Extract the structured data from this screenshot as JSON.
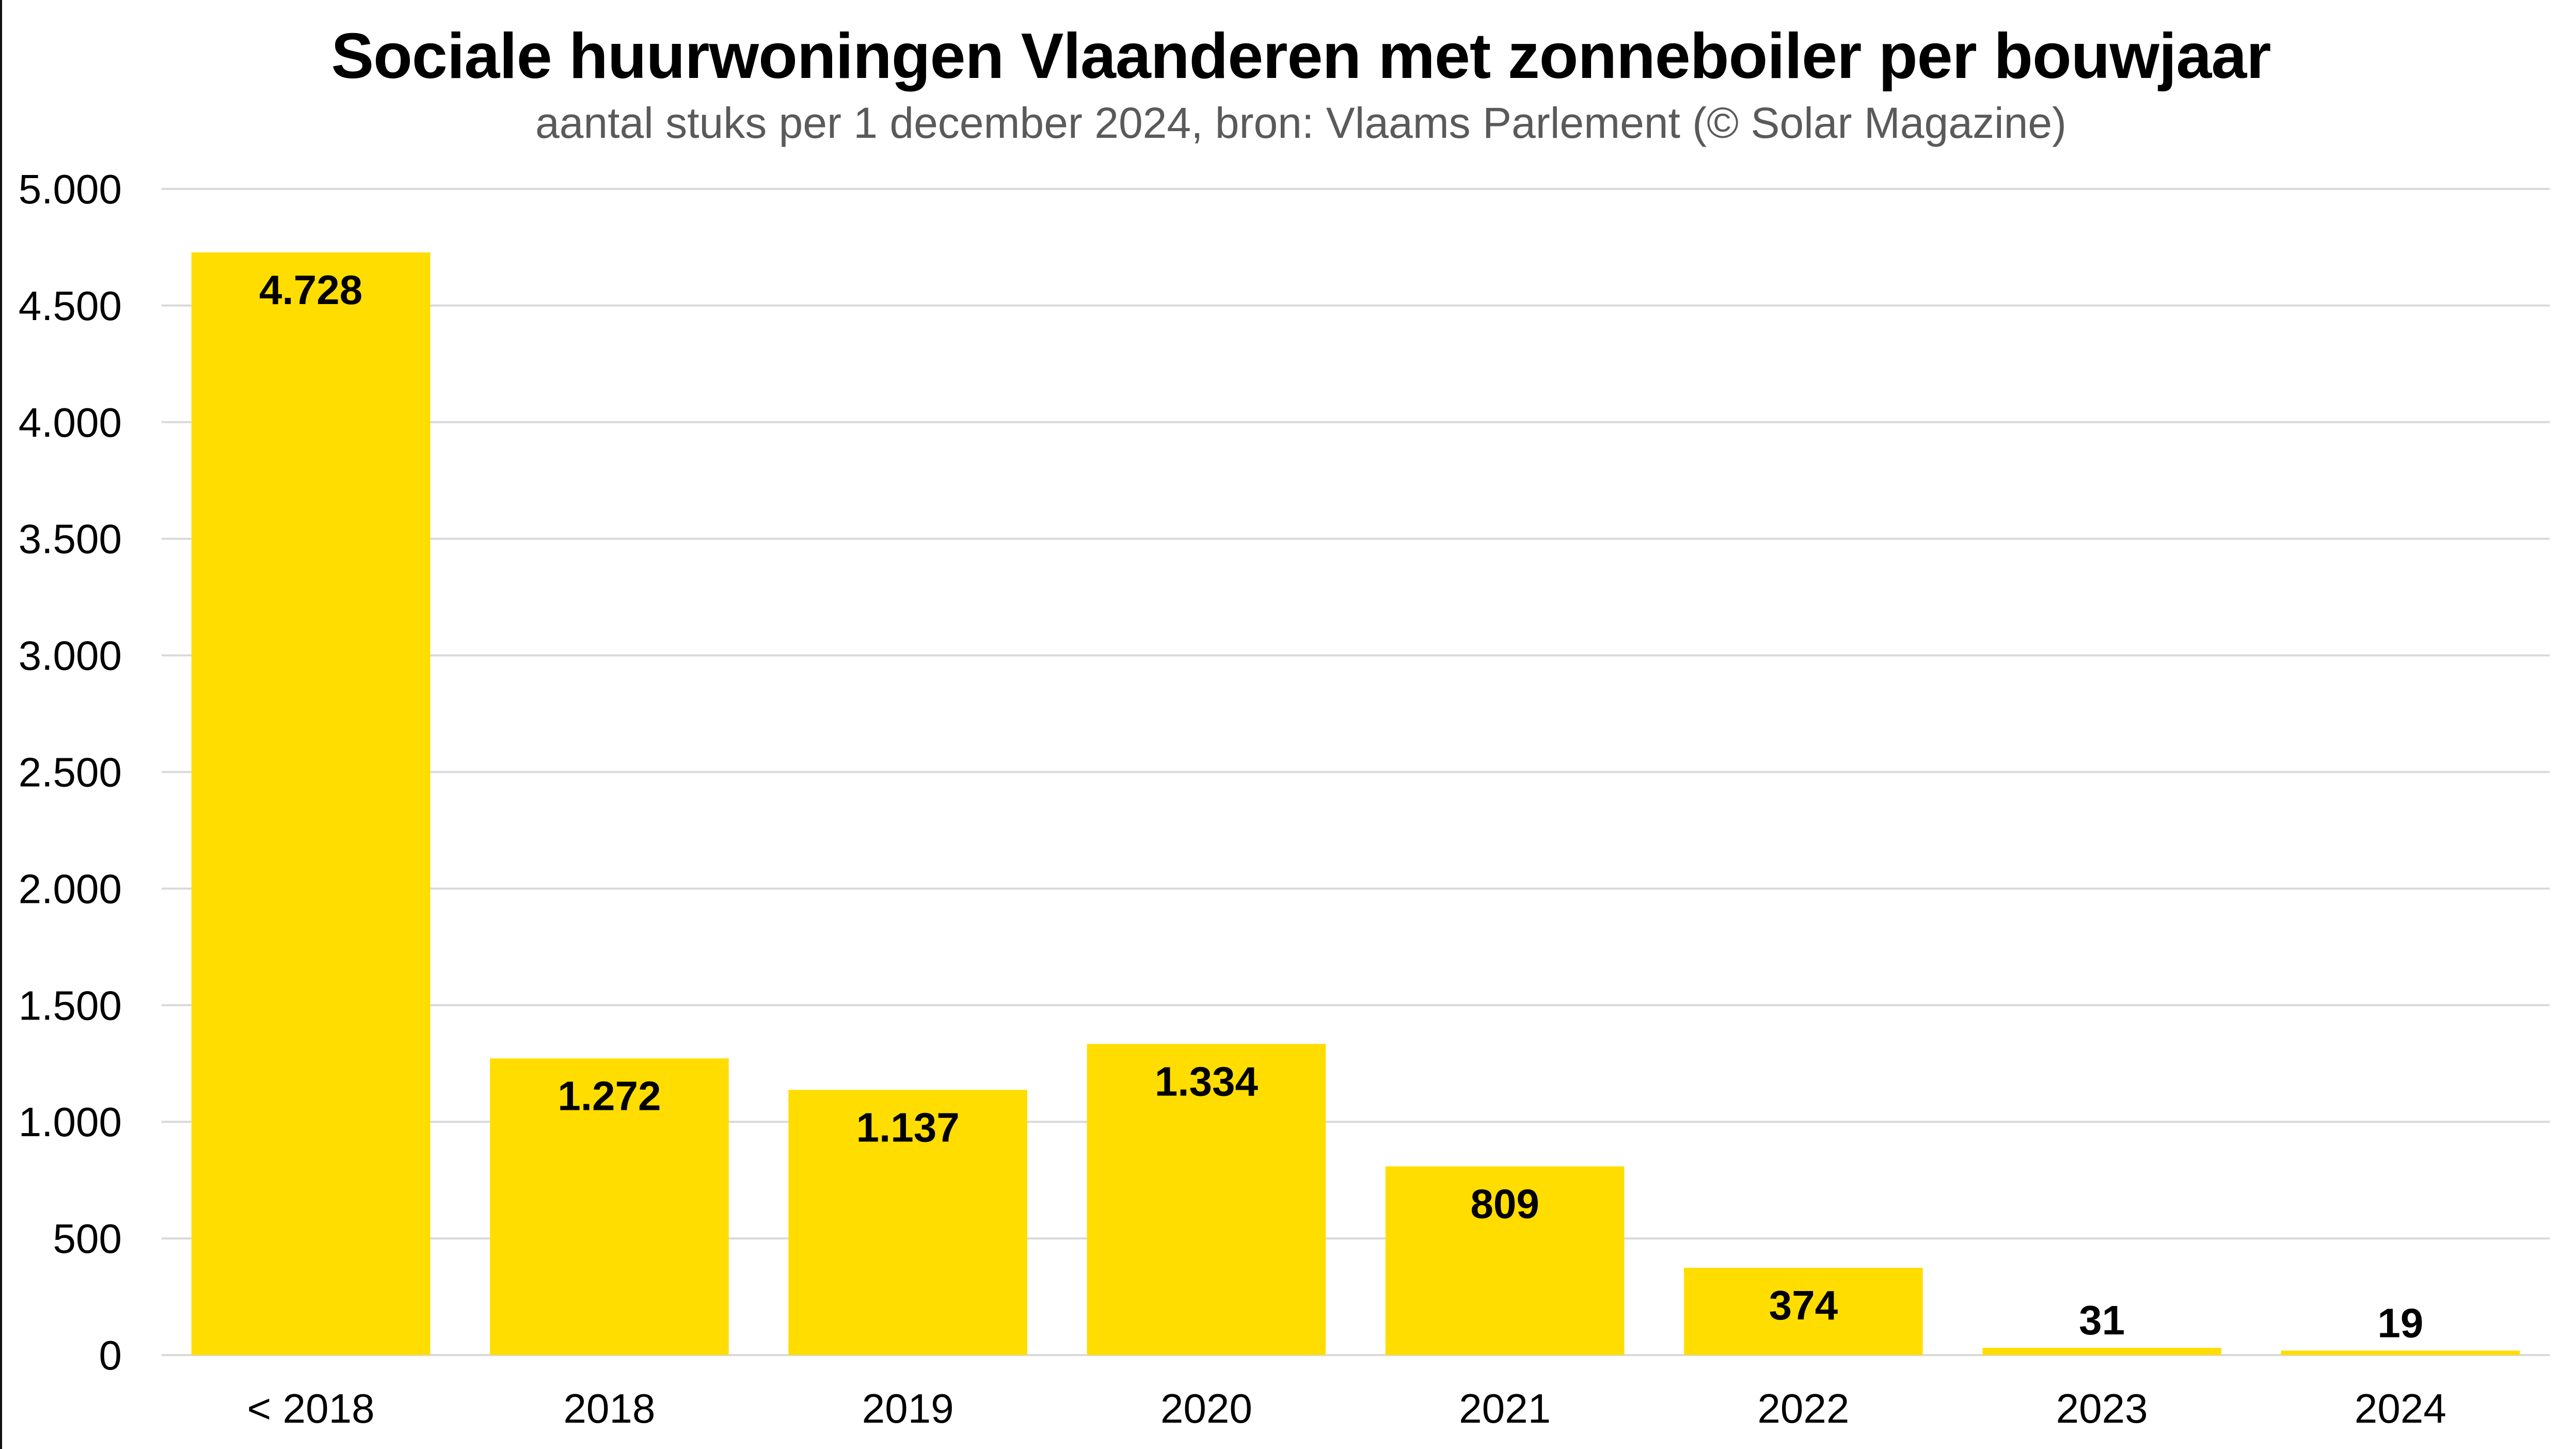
{
  "chart_data": {
    "type": "bar",
    "title": "Sociale huurwoningen Vlaanderen met zonneboiler per bouwjaar",
    "subtitle": "aantal stuks per 1 december 2024, bron: Vlaams Parlement (© Solar Magazine)",
    "xlabel": "",
    "ylabel": "",
    "categories": [
      "< 2018",
      "2018",
      "2019",
      "2020",
      "2021",
      "2022",
      "2023",
      "2024"
    ],
    "values": [
      4728,
      1272,
      1137,
      1334,
      809,
      374,
      31,
      19
    ],
    "data_labels": [
      "4.728",
      "1.272",
      "1.137",
      "1.334",
      "809",
      "374",
      "31",
      "19"
    ],
    "ylim": [
      0,
      5000
    ],
    "yticks": [
      0,
      500,
      1000,
      1500,
      2000,
      2500,
      3000,
      3500,
      4000,
      4500,
      5000
    ],
    "ytick_labels": [
      "0",
      "500",
      "1.000",
      "1.500",
      "2.000",
      "2.500",
      "3.000",
      "3.500",
      "4.000",
      "4.500",
      "5.000"
    ],
    "grid": true,
    "legend": "none",
    "colors": {
      "bar": "#FFDD00",
      "grid": "#D9D9D9",
      "text": "#000000",
      "subtitle": "#5A5A5A"
    }
  }
}
